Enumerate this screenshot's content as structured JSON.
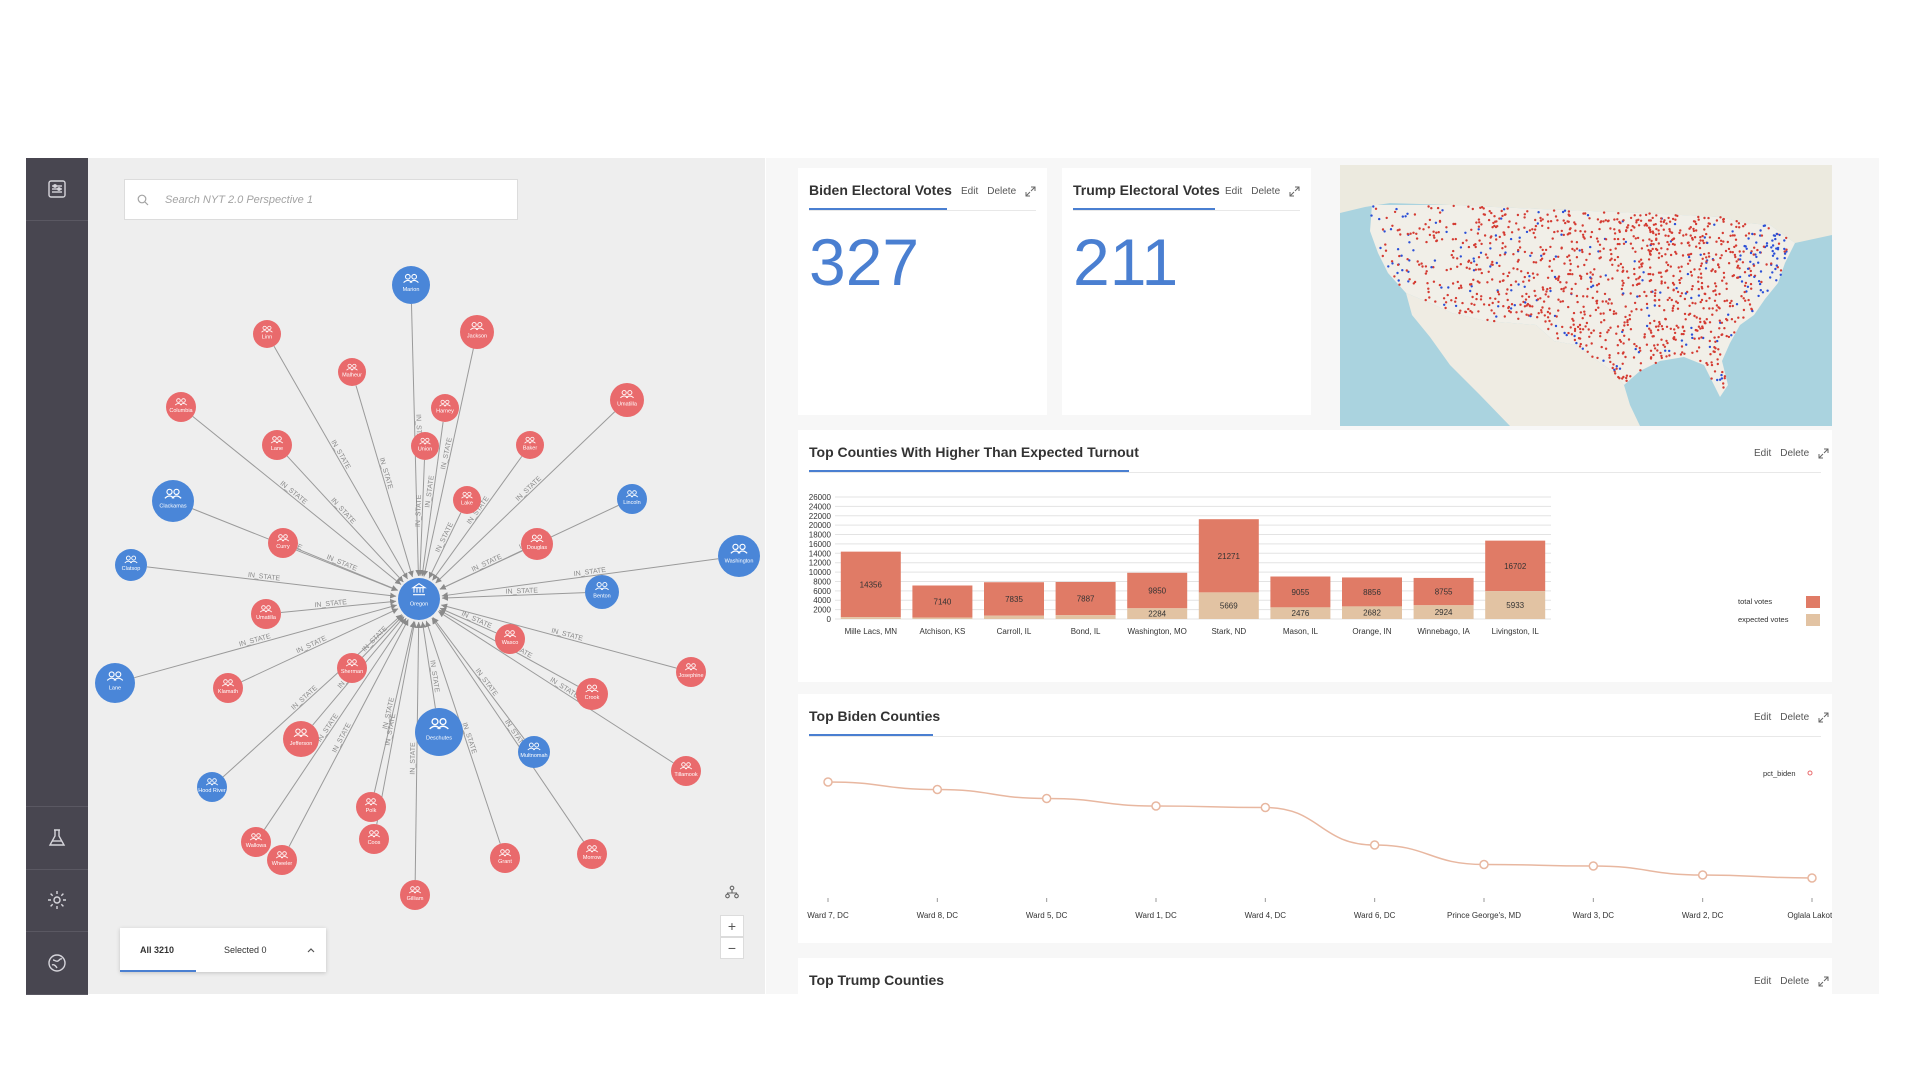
{
  "sidebar": {
    "items": [
      {
        "name": "perspective-icon"
      },
      {
        "name": "flask-icon"
      },
      {
        "name": "settings-icon"
      },
      {
        "name": "plugins-icon"
      }
    ]
  },
  "search": {
    "placeholder": "Search NYT 2.0 Perspective 1"
  },
  "graph": {
    "relationship_label": "IN_STATE",
    "center": {
      "label": "Oregon"
    },
    "nodes": [
      {
        "label": "Marion",
        "party": "biden"
      },
      {
        "label": "Jackson",
        "party": "trump"
      },
      {
        "label": "Linn",
        "party": "trump"
      },
      {
        "label": "Malheur",
        "party": "trump"
      },
      {
        "label": "Columbia",
        "party": "trump"
      },
      {
        "label": "Harney",
        "party": "trump"
      },
      {
        "label": "Umatilla",
        "party": "trump"
      },
      {
        "label": "Lane",
        "party": "trump"
      },
      {
        "label": "Union",
        "party": "trump"
      },
      {
        "label": "Baker",
        "party": "trump"
      },
      {
        "label": "Clackamas",
        "party": "biden"
      },
      {
        "label": "Lake",
        "party": "trump"
      },
      {
        "label": "Lincoln",
        "party": "biden"
      },
      {
        "label": "Curry",
        "party": "trump"
      },
      {
        "label": "Douglas",
        "party": "trump"
      },
      {
        "label": "Clatsop",
        "party": "biden"
      },
      {
        "label": "Washington",
        "party": "biden"
      },
      {
        "label": "Benton",
        "party": "biden"
      },
      {
        "label": "Umatilla",
        "party": "trump"
      },
      {
        "label": "Wasco",
        "party": "trump"
      },
      {
        "label": "Sherman",
        "party": "trump"
      },
      {
        "label": "Crook",
        "party": "trump"
      },
      {
        "label": "Lane",
        "party": "biden"
      },
      {
        "label": "Klamath",
        "party": "trump"
      },
      {
        "label": "Josephine",
        "party": "trump"
      },
      {
        "label": "Jefferson",
        "party": "trump"
      },
      {
        "label": "Deschutes",
        "party": "biden"
      },
      {
        "label": "Multnomah",
        "party": "biden"
      },
      {
        "label": "Hood River",
        "party": "biden"
      },
      {
        "label": "Polk",
        "party": "trump"
      },
      {
        "label": "Tillamook",
        "party": "trump"
      },
      {
        "label": "Morrow",
        "party": "trump"
      },
      {
        "label": "Wheeler",
        "party": "trump"
      },
      {
        "label": "Grant",
        "party": "trump"
      },
      {
        "label": "Gilliam",
        "party": "trump"
      },
      {
        "label": "Wallowa",
        "party": "trump"
      },
      {
        "label": "Coos",
        "party": "trump"
      }
    ]
  },
  "results": {
    "all_label": "All 3210",
    "selected_label": "Selected 0"
  },
  "cards": {
    "biden": {
      "title": "Biden Electoral Votes",
      "value": "327"
    },
    "trump": {
      "title": "Trump Electoral Votes",
      "value": "211"
    },
    "turnout": {
      "title": "Top Counties With Higher Than Expected Turnout"
    },
    "biden_counties": {
      "title": "Top Biden Counties"
    },
    "trump_counties": {
      "title": "Top Trump Counties"
    }
  },
  "actions": {
    "edit": "Edit",
    "delete": "Delete"
  },
  "colors": {
    "biden": "#4a86d8",
    "trump": "#e96a6c",
    "total": "#e07b66",
    "expected": "#e2c3a3",
    "line": "#e8b7a0",
    "accent": "#4a7fd1"
  },
  "chart_data": [
    {
      "type": "bar",
      "title": "Top Counties With Higher Than Expected Turnout",
      "categories": [
        "Mille Lacs, MN",
        "Atchison, KS",
        "Carroll, IL",
        "Bond, IL",
        "Washington, MO",
        "Stark, ND",
        "Mason, IL",
        "Orange, IN",
        "Winnebago, IA",
        "Livingston, IL"
      ],
      "series": [
        {
          "name": "total votes",
          "values": [
            14356,
            7140,
            7835,
            7887,
            9850,
            21271,
            9055,
            8856,
            8755,
            16702
          ]
        },
        {
          "name": "expected votes",
          "values": [
            400,
            300,
            700,
            800,
            2284,
            5669,
            2476,
            2682,
            2924,
            5933
          ]
        }
      ],
      "value_labels": {
        "total votes": [
          "14356",
          "7140",
          "7835",
          "7887",
          "9850",
          "21271",
          "9055",
          "8856",
          "8755",
          "16702"
        ],
        "expected votes": [
          "",
          "",
          "",
          "",
          "2284",
          "5669",
          "2476",
          "2682",
          "2924",
          "5933"
        ]
      },
      "yticks": [
        "26000",
        "24000",
        "22000",
        "20000",
        "18000",
        "16000",
        "14000",
        "12000",
        "10000",
        "8000",
        "6000",
        "4000",
        "2000",
        "0"
      ],
      "ylim": [
        0,
        26000
      ]
    },
    {
      "type": "line",
      "title": "Top Biden Counties",
      "categories": [
        "Ward 7, DC",
        "Ward 8, DC",
        "Ward 5, DC",
        "Ward 1, DC",
        "Ward 4, DC",
        "Ward 6, DC",
        "Prince George's, MD",
        "Ward 3, DC",
        "Ward 2, DC",
        "Oglala Lakota"
      ],
      "series": [
        {
          "name": "pct_biden",
          "values": [
            0.922,
            0.917,
            0.911,
            0.906,
            0.905,
            0.88,
            0.867,
            0.866,
            0.86,
            0.858
          ]
        }
      ],
      "ylim": [
        0.85,
        0.93
      ]
    }
  ]
}
